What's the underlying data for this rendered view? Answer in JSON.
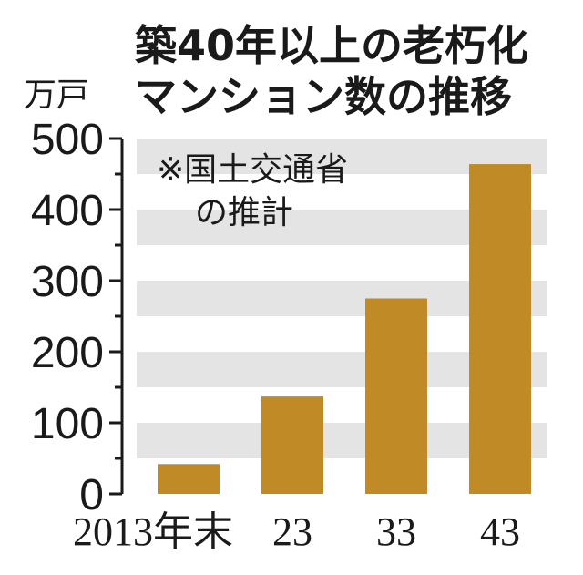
{
  "chart_data": {
    "type": "bar",
    "title_lines": [
      "築40年以上の老朽化",
      "マンション数の推移"
    ],
    "ylabel": "万戸",
    "categories": [
      "2013年末",
      "23",
      "33",
      "43"
    ],
    "values": [
      42,
      137,
      275,
      464
    ],
    "ylim": [
      0,
      500
    ],
    "yticks": [
      0,
      100,
      200,
      300,
      400,
      500
    ],
    "note_lines": [
      "※国土交通省",
      "の推計"
    ],
    "bar_color": "#c08a26",
    "band_color": "#e4e4e4",
    "grid": "alternating horizontal bands"
  }
}
